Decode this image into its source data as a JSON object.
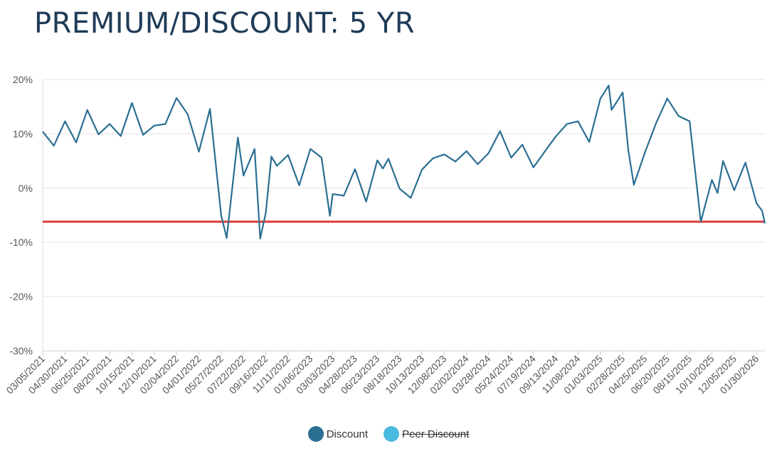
{
  "title": "PREMIUM/DISCOUNT: 5 YR",
  "colors": {
    "series": "#2a6f92",
    "reference": "#e03a3a",
    "grid": "#e6e6e6",
    "axis_text": "#555555"
  },
  "chart_data": {
    "type": "line",
    "title": "PREMIUM/DISCOUNT: 5 YR",
    "ylim": [
      -30,
      20
    ],
    "y_ticks": [
      20,
      10,
      0,
      -10,
      -20,
      -30
    ],
    "y_tick_labels": [
      "20%",
      "10%",
      "0%",
      "-10%",
      "-20%",
      "-30%"
    ],
    "x_range": [
      "2021-03-05",
      "2026-02-20"
    ],
    "x_tick_labels": [
      "03/05/2021",
      "04/30/2021",
      "06/25/2021",
      "08/20/2021",
      "10/15/2021",
      "12/10/2021",
      "02/04/2022",
      "04/01/2022",
      "05/27/2022",
      "07/22/2022",
      "09/16/2022",
      "11/11/2022",
      "01/06/2023",
      "03/03/2023",
      "04/28/2023",
      "06/23/2023",
      "08/18/2023",
      "10/13/2023",
      "12/08/2023",
      "02/02/2024",
      "03/28/2024",
      "05/24/2024",
      "07/19/2024",
      "09/13/2024",
      "11/08/2024",
      "01/03/2025",
      "02/28/2025",
      "04/25/2025",
      "06/20/2025",
      "08/15/2025",
      "10/10/2025",
      "12/05/2025",
      "01/30/2026"
    ],
    "grid": true,
    "legend_position": "bottom-center",
    "reference_line": {
      "y": -6.2,
      "color": "#e03a3a"
    },
    "series": [
      {
        "name": "Discount",
        "color": "#2a6f92",
        "visible": true,
        "x": [
          "2021-03-05",
          "2021-04-02",
          "2021-04-30",
          "2021-05-28",
          "2021-06-25",
          "2021-07-23",
          "2021-08-20",
          "2021-09-17",
          "2021-10-15",
          "2021-11-12",
          "2021-12-10",
          "2022-01-07",
          "2022-02-04",
          "2022-03-04",
          "2022-04-01",
          "2022-04-29",
          "2022-05-27",
          "2022-06-10",
          "2022-06-24",
          "2022-07-08",
          "2022-07-22",
          "2022-08-19",
          "2022-09-02",
          "2022-09-16",
          "2022-09-30",
          "2022-10-14",
          "2022-11-11",
          "2022-12-09",
          "2023-01-06",
          "2023-02-03",
          "2023-02-24",
          "2023-03-03",
          "2023-03-31",
          "2023-04-28",
          "2023-05-26",
          "2023-06-23",
          "2023-07-07",
          "2023-07-21",
          "2023-08-18",
          "2023-09-15",
          "2023-10-13",
          "2023-11-10",
          "2023-12-08",
          "2024-01-05",
          "2024-02-02",
          "2024-03-01",
          "2024-03-28",
          "2024-04-26",
          "2024-05-24",
          "2024-06-21",
          "2024-07-19",
          "2024-08-16",
          "2024-09-13",
          "2024-10-11",
          "2024-11-08",
          "2024-12-06",
          "2025-01-03",
          "2025-01-24",
          "2025-01-31",
          "2025-02-28",
          "2025-03-14",
          "2025-03-28",
          "2025-04-25",
          "2025-05-23",
          "2025-06-20",
          "2025-07-18",
          "2025-08-15",
          "2025-09-12",
          "2025-10-10",
          "2025-10-24",
          "2025-11-07",
          "2025-12-05",
          "2026-01-02",
          "2026-01-30",
          "2026-02-13",
          "2026-02-20"
        ],
        "values": [
          10.4,
          7.8,
          12.3,
          8.4,
          14.4,
          9.9,
          11.8,
          9.6,
          15.7,
          9.8,
          11.5,
          11.8,
          16.6,
          13.6,
          6.7,
          14.6,
          -5.0,
          -9.2,
          0.1,
          9.3,
          2.3,
          7.2,
          -9.3,
          -4.6,
          5.8,
          4.1,
          6.1,
          0.5,
          7.2,
          5.6,
          -5.1,
          -1.1,
          -1.4,
          3.5,
          -2.5,
          5.1,
          3.6,
          5.4,
          -0.1,
          -1.8,
          3.4,
          5.5,
          6.2,
          4.9,
          6.8,
          4.4,
          6.4,
          10.5,
          5.6,
          8.0,
          3.8,
          6.7,
          9.5,
          11.8,
          12.3,
          8.5,
          16.5,
          18.9,
          14.4,
          17.6,
          7.0,
          0.6,
          6.6,
          12.0,
          16.5,
          13.3,
          12.3,
          -6.2,
          1.5,
          -0.9,
          5.0,
          -0.4,
          4.7,
          -2.8,
          -4.2,
          -6.5
        ]
      },
      {
        "name": "Peer Discount",
        "color": "#4ab9e0",
        "visible": false,
        "values": []
      }
    ]
  },
  "legend": [
    {
      "label": "Discount",
      "color": "#2a6f92",
      "hidden": false
    },
    {
      "label": "Peer Discount",
      "color": "#4ab9e0",
      "hidden": true
    }
  ]
}
